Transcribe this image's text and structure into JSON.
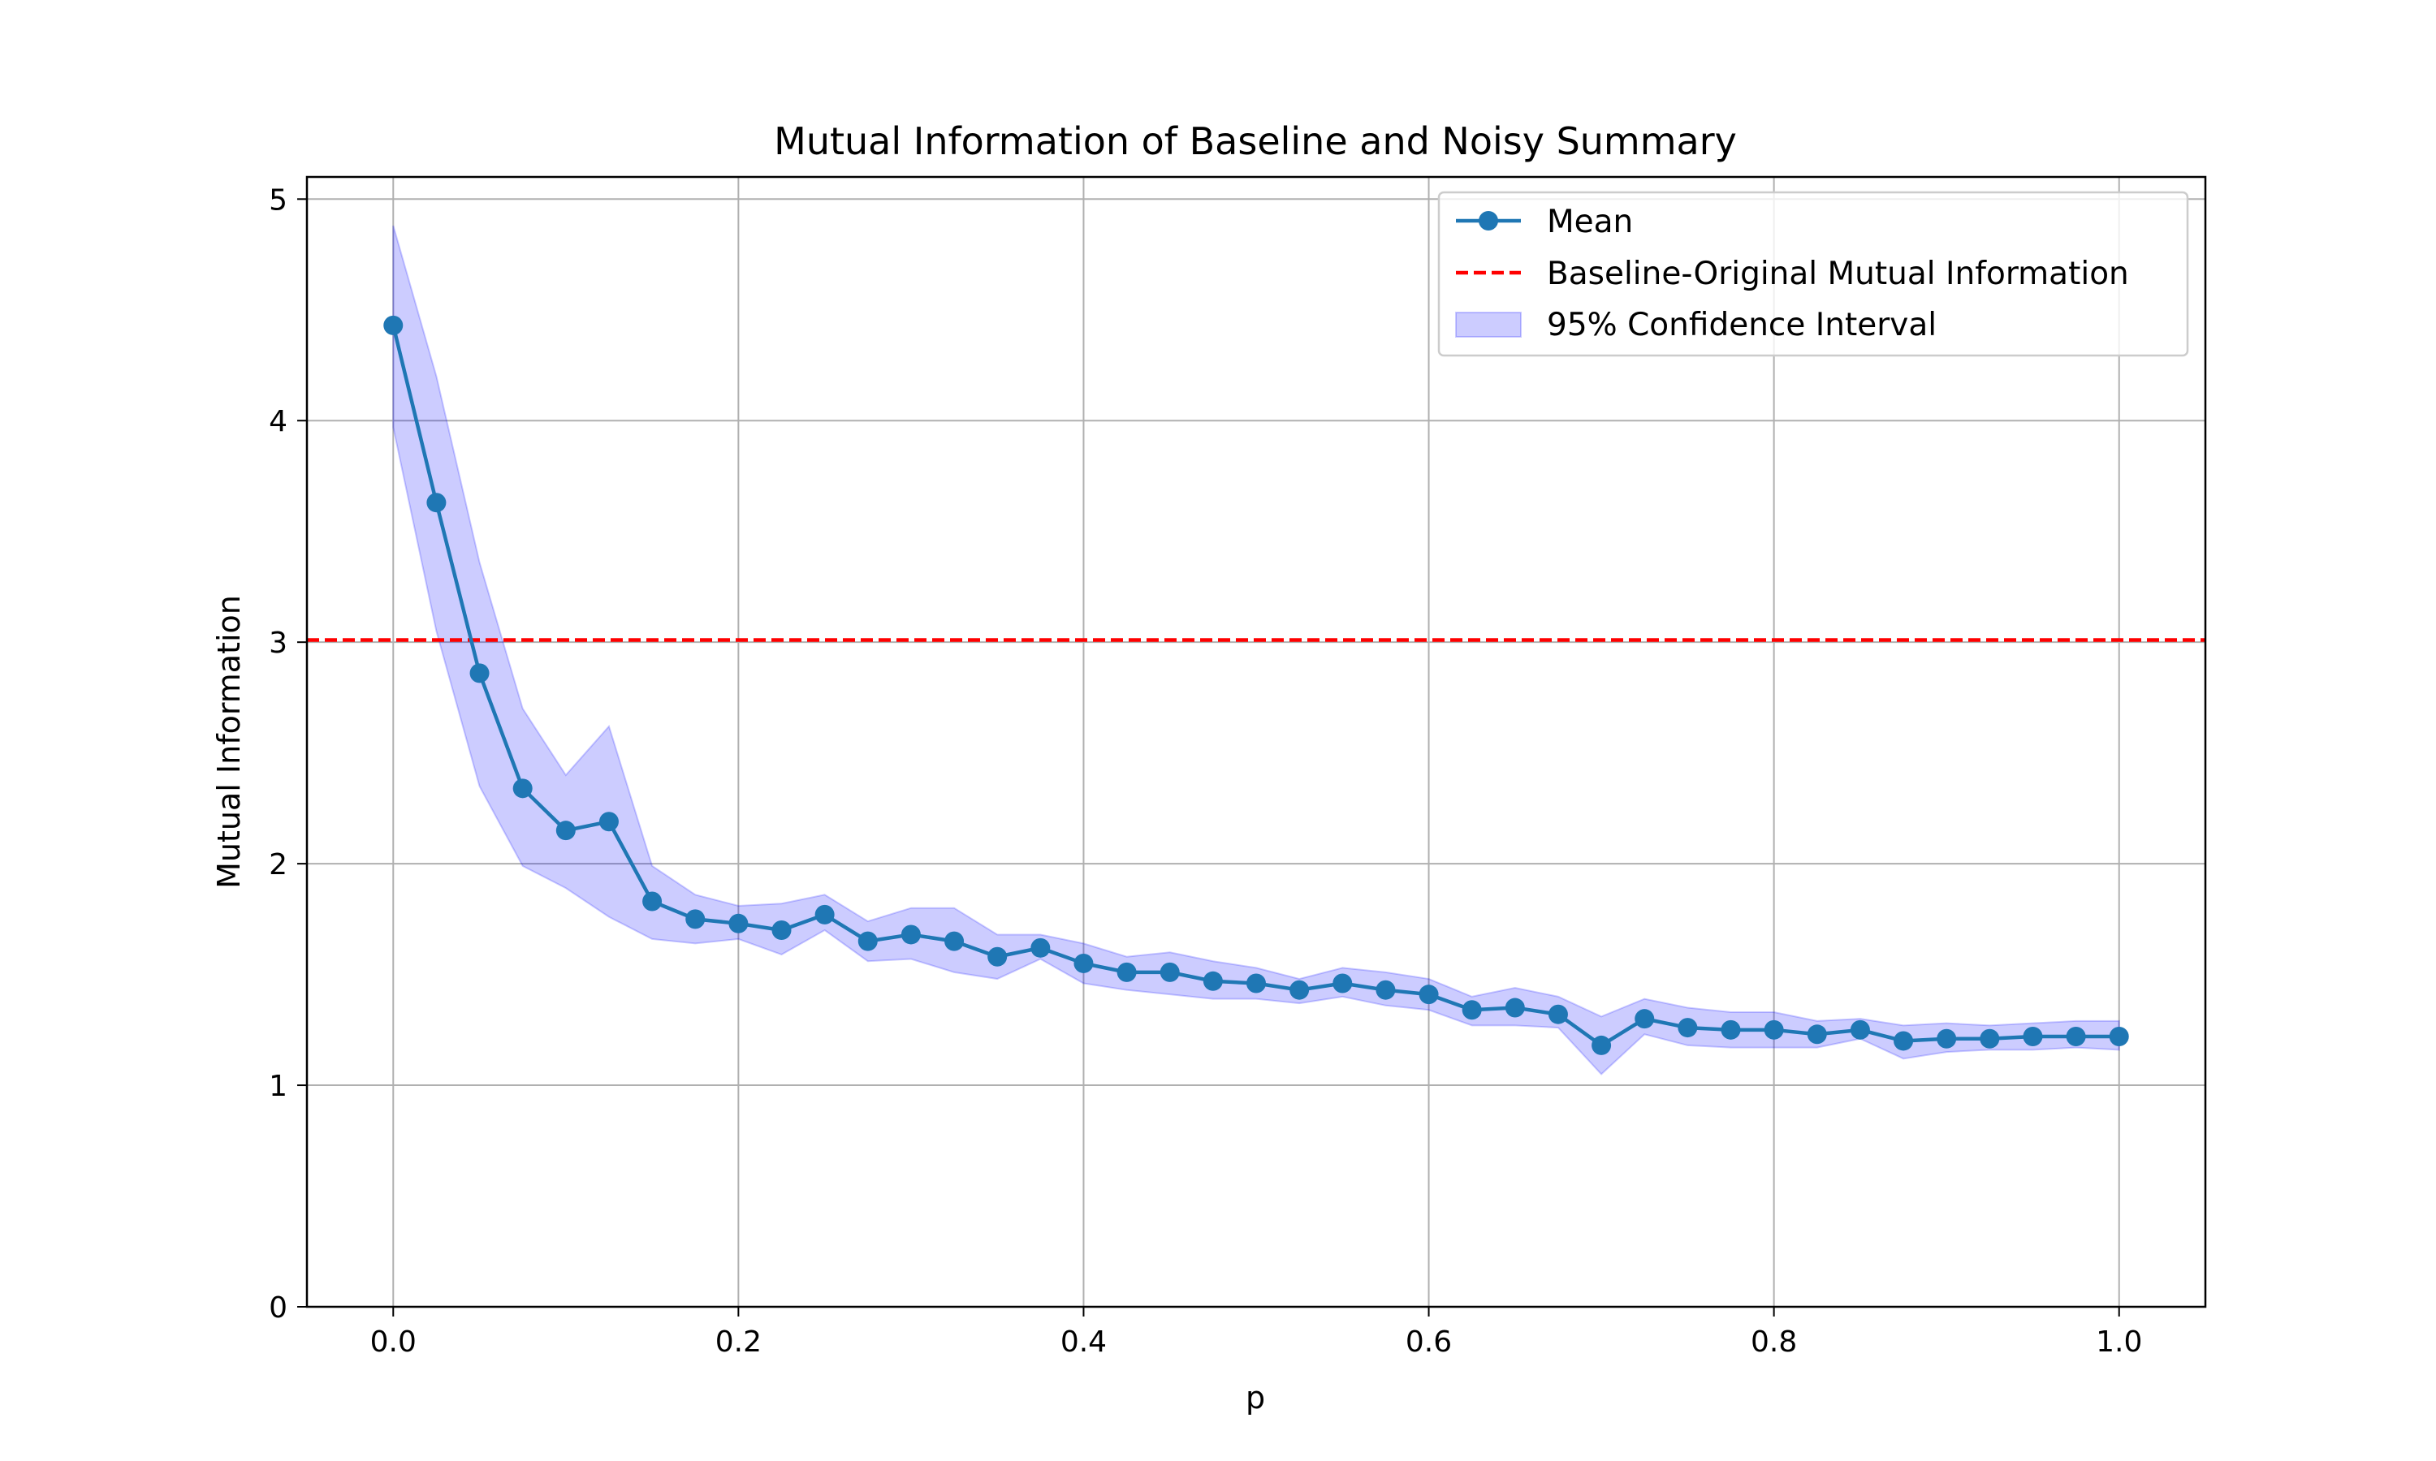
{
  "chart_data": {
    "type": "line",
    "title": "Mutual Information of Baseline and Noisy Summary",
    "xlabel": "p",
    "ylabel": "Mutual Information",
    "xlim": [
      -0.05,
      1.05
    ],
    "ylim": [
      0,
      5.1
    ],
    "xticks": [
      "0.0",
      "0.2",
      "0.4",
      "0.6",
      "0.8",
      "1.0"
    ],
    "xtick_values": [
      0.0,
      0.2,
      0.4,
      0.6,
      0.8,
      1.0
    ],
    "yticks": [
      "0",
      "1",
      "2",
      "3",
      "4",
      "5"
    ],
    "ytick_values": [
      0,
      1,
      2,
      3,
      4,
      5
    ],
    "grid": true,
    "legend_position": "top-right",
    "x": [
      0.0,
      0.025,
      0.05,
      0.075,
      0.1,
      0.125,
      0.15,
      0.175,
      0.2,
      0.225,
      0.25,
      0.275,
      0.3,
      0.325,
      0.35,
      0.375,
      0.4,
      0.425,
      0.45,
      0.475,
      0.5,
      0.525,
      0.55,
      0.575,
      0.6,
      0.625,
      0.65,
      0.675,
      0.7,
      0.725,
      0.75,
      0.775,
      0.8,
      0.825,
      0.85,
      0.875,
      0.9,
      0.925,
      0.95,
      0.975,
      1.0
    ],
    "series": [
      {
        "name": "Mean",
        "color": "#1f77b4",
        "values": [
          4.43,
          3.63,
          2.86,
          2.34,
          2.15,
          2.19,
          1.83,
          1.75,
          1.73,
          1.7,
          1.77,
          1.65,
          1.68,
          1.65,
          1.58,
          1.62,
          1.55,
          1.51,
          1.51,
          1.47,
          1.46,
          1.43,
          1.46,
          1.43,
          1.41,
          1.34,
          1.35,
          1.32,
          1.18,
          1.3,
          1.26,
          1.25,
          1.25,
          1.23,
          1.25,
          1.2,
          1.21,
          1.21,
          1.22,
          1.22,
          1.22
        ]
      },
      {
        "name": "95% Confidence Interval",
        "color": "#0000ff",
        "lower": [
          3.97,
          3.05,
          2.35,
          1.99,
          1.89,
          1.76,
          1.66,
          1.64,
          1.66,
          1.59,
          1.7,
          1.56,
          1.57,
          1.51,
          1.48,
          1.57,
          1.46,
          1.43,
          1.41,
          1.39,
          1.39,
          1.37,
          1.4,
          1.36,
          1.34,
          1.27,
          1.27,
          1.26,
          1.05,
          1.23,
          1.18,
          1.17,
          1.17,
          1.17,
          1.21,
          1.12,
          1.15,
          1.16,
          1.16,
          1.17,
          1.16
        ],
        "upper": [
          4.88,
          4.2,
          3.36,
          2.7,
          2.4,
          2.62,
          1.99,
          1.86,
          1.81,
          1.82,
          1.86,
          1.74,
          1.8,
          1.8,
          1.68,
          1.68,
          1.64,
          1.58,
          1.6,
          1.56,
          1.53,
          1.48,
          1.53,
          1.51,
          1.48,
          1.4,
          1.44,
          1.4,
          1.31,
          1.39,
          1.35,
          1.33,
          1.33,
          1.29,
          1.3,
          1.27,
          1.28,
          1.27,
          1.28,
          1.29,
          1.29
        ]
      }
    ],
    "reference_line": {
      "name": "Baseline-Original Mutual Information",
      "y": 3.01,
      "color": "#ff0000",
      "style": "dashed"
    }
  }
}
